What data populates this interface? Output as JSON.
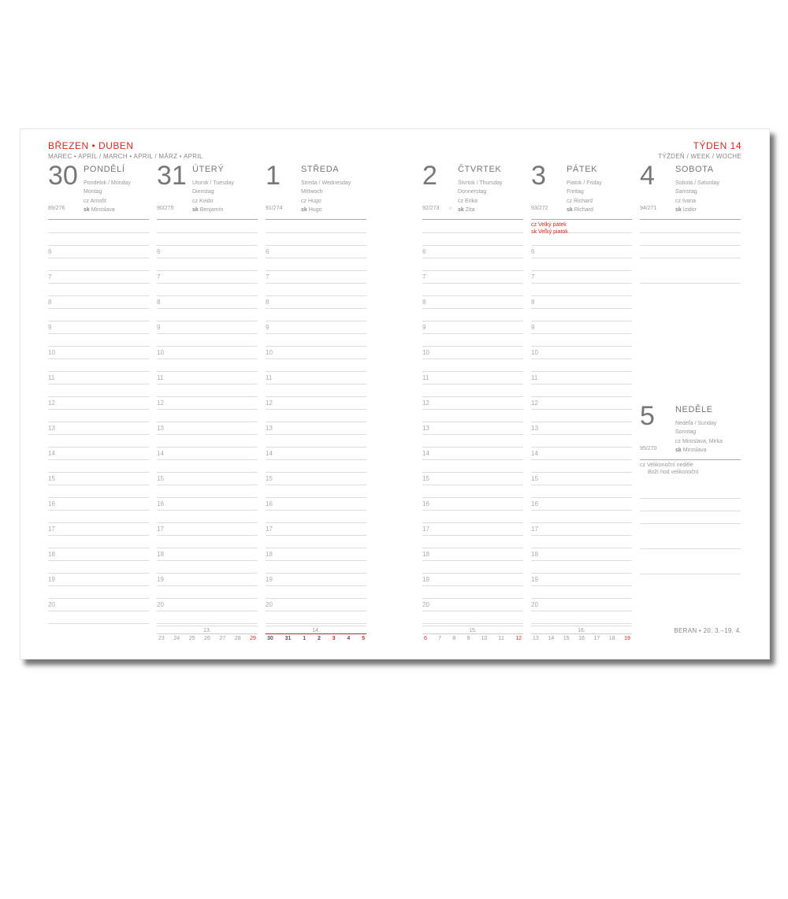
{
  "header": {
    "title": "BŘEZEN • DUBEN",
    "subtitle": "MAREC • APRÍL / MARCH • APRIL / MÄRZ • APRIL",
    "week_title": "TÝDEN 14",
    "week_subtitle": "TÝŽDEŇ / WEEK / WOCHE"
  },
  "hours": [
    "6",
    "7",
    "8",
    "9",
    "10",
    "11",
    "12",
    "13",
    "14",
    "15",
    "16",
    "17",
    "18",
    "19",
    "20"
  ],
  "days": [
    {
      "num": "30",
      "name": "PONDĚLÍ",
      "trans1": "Pondelok / Monday",
      "trans2": "Montag",
      "cz": "Arnošt",
      "sk": "Miroslava",
      "code": "89/276",
      "red": false
    },
    {
      "num": "31",
      "name": "ÚTERÝ",
      "trans1": "Utorok / Tuesday",
      "trans2": "Dienstag",
      "cz": "Kvido",
      "sk": "Benjamín",
      "code": "90/275",
      "red": false
    },
    {
      "num": "1",
      "name": "STŘEDA",
      "trans1": "Streda / Wednesday",
      "trans2": "Mittwoch",
      "cz": "Hugo",
      "sk": "Hugo",
      "code": "91/274",
      "red": false
    },
    {
      "num": "2",
      "name": "ČTVRTEK",
      "trans1": "Štvrtok / Thursday",
      "trans2": "Donnerstag",
      "cz": "Erika",
      "sk": "Zita",
      "code": "92/273",
      "moon": "○",
      "red": false
    },
    {
      "num": "3",
      "name": "PÁTEK",
      "trans1": "Piatok / Friday",
      "trans2": "Freitag",
      "cz": "Richard",
      "sk": "Richard",
      "code": "93/272",
      "red": true,
      "holiday1": "cz Velký pátek",
      "holiday2": "sk Veľký piatok"
    },
    {
      "num": "4",
      "name": "SOBOTA",
      "trans1": "Sobota / Saturday",
      "trans2": "Samstag",
      "cz": "Ivana",
      "sk": "Izidor",
      "code": "94/271",
      "red": false
    }
  ],
  "sunday": {
    "num": "5",
    "name": "NEDĚLE",
    "trans1": "Nedeľa / Sunday",
    "trans2": "Sonntag",
    "cz": "Miroslava, Mirka",
    "sk": "Miroslava",
    "code": "95/270",
    "note1": "cz Velikonoční neděle",
    "note2": "Boží hod velikonoční"
  },
  "minis": [
    {
      "week": "13.",
      "days": [
        "23",
        "24",
        "25",
        "26",
        "27",
        "28",
        "29"
      ],
      "red": [
        6
      ]
    },
    {
      "week": "14.",
      "days": [
        "30",
        "31",
        "1",
        "2",
        "3",
        "4",
        "5"
      ],
      "red": [
        4,
        6
      ],
      "current": true
    },
    {
      "week": "15.",
      "days": [
        "6",
        "7",
        "8",
        "9",
        "10",
        "11",
        "12"
      ],
      "red": [
        0,
        6
      ]
    },
    {
      "week": "16.",
      "days": [
        "13",
        "14",
        "15",
        "16",
        "17",
        "18",
        "19"
      ],
      "red": [
        6
      ]
    }
  ],
  "footer": "BERAN • 20. 3.–19. 4.",
  "colors": {
    "accent": "#e3261c"
  }
}
